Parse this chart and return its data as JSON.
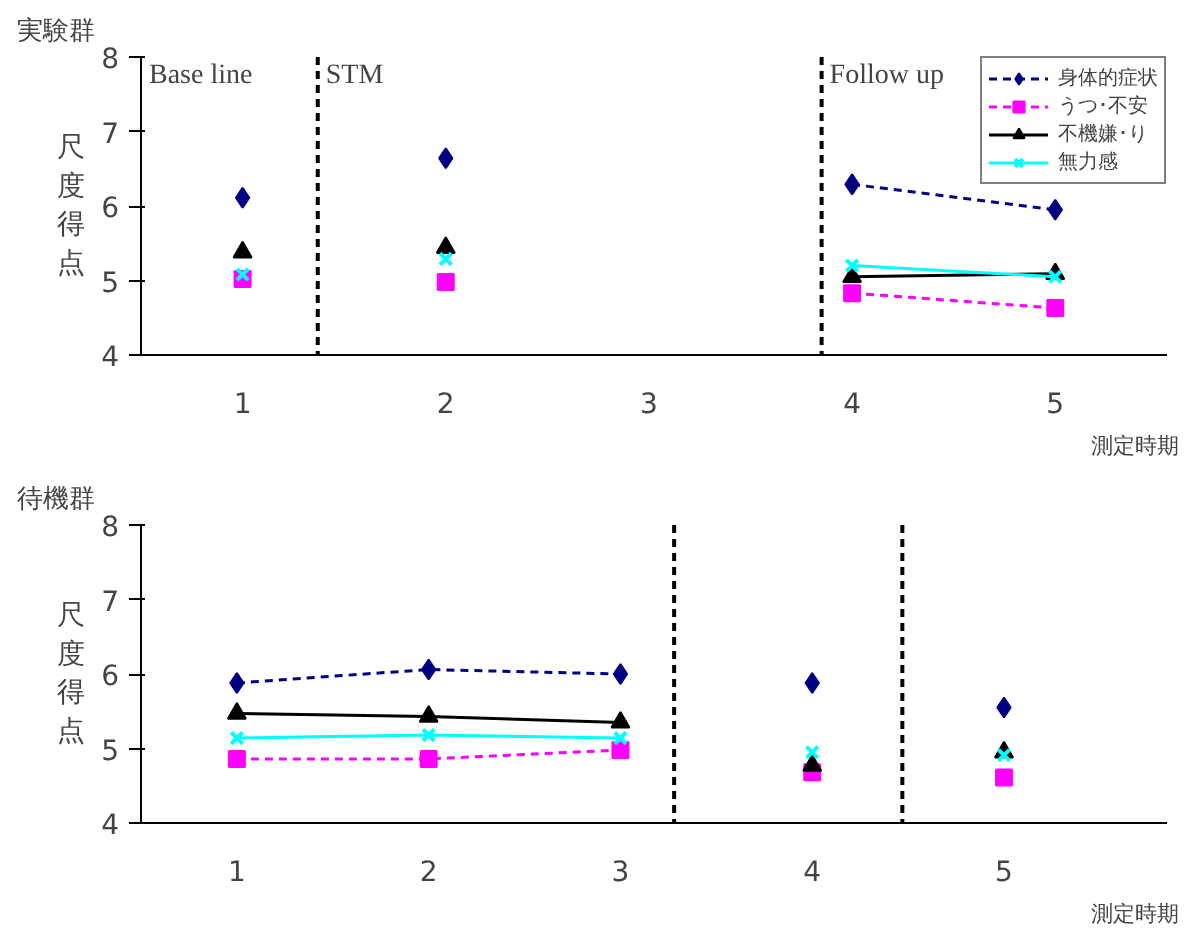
{
  "chart_data": [
    {
      "type": "line",
      "title": "実験群",
      "ylabel": "尺度得点",
      "xlabel": "測定時期",
      "x": [
        1,
        2,
        3,
        4,
        5
      ],
      "xlim": [
        0.5,
        5.55
      ],
      "xticks": [
        1,
        2,
        3,
        4,
        5
      ],
      "ylim": [
        4,
        8
      ],
      "yticks": [
        4,
        5,
        6,
        7,
        8
      ],
      "grid": false,
      "legend": "top right",
      "series": [
        {
          "name": "身体的症状",
          "color": "#000080",
          "marker": "diamond",
          "line_style": "dashed",
          "values": [
            null,
            null,
            null,
            6.29,
            5.95
          ]
        },
        {
          "name": "うつ･不安",
          "color": "#ff00ff",
          "marker": "square",
          "line_style": "dashed",
          "values": [
            null,
            null,
            null,
            4.83,
            4.63
          ]
        },
        {
          "name": "不機嫌･り",
          "color": "#000000",
          "marker": "triangle",
          "line_style": "solid",
          "values": [
            null,
            null,
            null,
            5.05,
            5.09
          ]
        },
        {
          "name": "無力感",
          "color": "#00ffff",
          "marker": "cross",
          "line_style": "solid",
          "values": [
            null,
            null,
            null,
            5.2,
            5.05
          ]
        },
        {
          "type": "scatter",
          "color": "#000080",
          "marker": "diamond",
          "values": [
            6.11,
            6.64,
            null,
            null,
            null
          ]
        },
        {
          "type": "scatter",
          "color": "#ff00ff",
          "marker": "square",
          "values": [
            5.02,
            4.98,
            null,
            null,
            null
          ]
        },
        {
          "type": "scatter",
          "color": "#000000",
          "marker": "triangle",
          "values": [
            5.38,
            5.44,
            null,
            null,
            null
          ]
        },
        {
          "type": "scatter",
          "color": "#00ffff",
          "marker": "cross",
          "values": [
            5.08,
            5.29,
            null,
            null,
            null
          ]
        }
      ],
      "ref_lines": [
        {
          "axis": "x",
          "value": 1.37,
          "line_style": "dashed"
        },
        {
          "axis": "x",
          "value": 3.85,
          "line_style": "dashed"
        }
      ],
      "annotations": [
        "Base line",
        "STM",
        "Follow up"
      ]
    },
    {
      "type": "line",
      "title": "待機群",
      "ylabel": "尺度得点",
      "xlabel": "測定時期",
      "x": [
        1,
        2,
        3,
        4,
        5
      ],
      "xlim": [
        0.5,
        5.85
      ],
      "xticks": [
        1,
        2,
        3,
        4,
        5
      ],
      "ylim": [
        4,
        8
      ],
      "yticks": [
        4,
        5,
        6,
        7,
        8
      ],
      "grid": false,
      "series": [
        {
          "color": "#000080",
          "marker": "diamond",
          "line_style": "dashed",
          "values": [
            5.88,
            6.06,
            6.0,
            null,
            null
          ]
        },
        {
          "color": "#ff00ff",
          "marker": "square",
          "line_style": "dashed",
          "values": [
            4.86,
            4.86,
            4.98,
            null,
            null
          ]
        },
        {
          "color": "#000000",
          "marker": "triangle",
          "line_style": "solid",
          "values": [
            5.47,
            5.43,
            5.35,
            null,
            null
          ]
        },
        {
          "color": "#00ffff",
          "marker": "cross",
          "line_style": "solid",
          "values": [
            5.14,
            5.18,
            5.14,
            null,
            null
          ]
        },
        {
          "type": "scatter",
          "color": "#000080",
          "marker": "diamond",
          "values": [
            null,
            null,
            null,
            5.88,
            5.55
          ]
        },
        {
          "type": "scatter",
          "color": "#ff00ff",
          "marker": "square",
          "values": [
            null,
            null,
            null,
            4.68,
            4.61
          ]
        },
        {
          "type": "scatter",
          "color": "#000000",
          "marker": "triangle",
          "values": [
            null,
            null,
            null,
            4.77,
            4.95
          ]
        },
        {
          "type": "scatter",
          "color": "#00ffff",
          "marker": "cross",
          "values": [
            null,
            null,
            null,
            4.95,
            4.91
          ]
        }
      ],
      "ref_lines": [
        {
          "axis": "x",
          "value": 3.28,
          "line_style": "dashed"
        },
        {
          "axis": "x",
          "value": 4.47,
          "line_style": "dashed"
        }
      ]
    }
  ]
}
